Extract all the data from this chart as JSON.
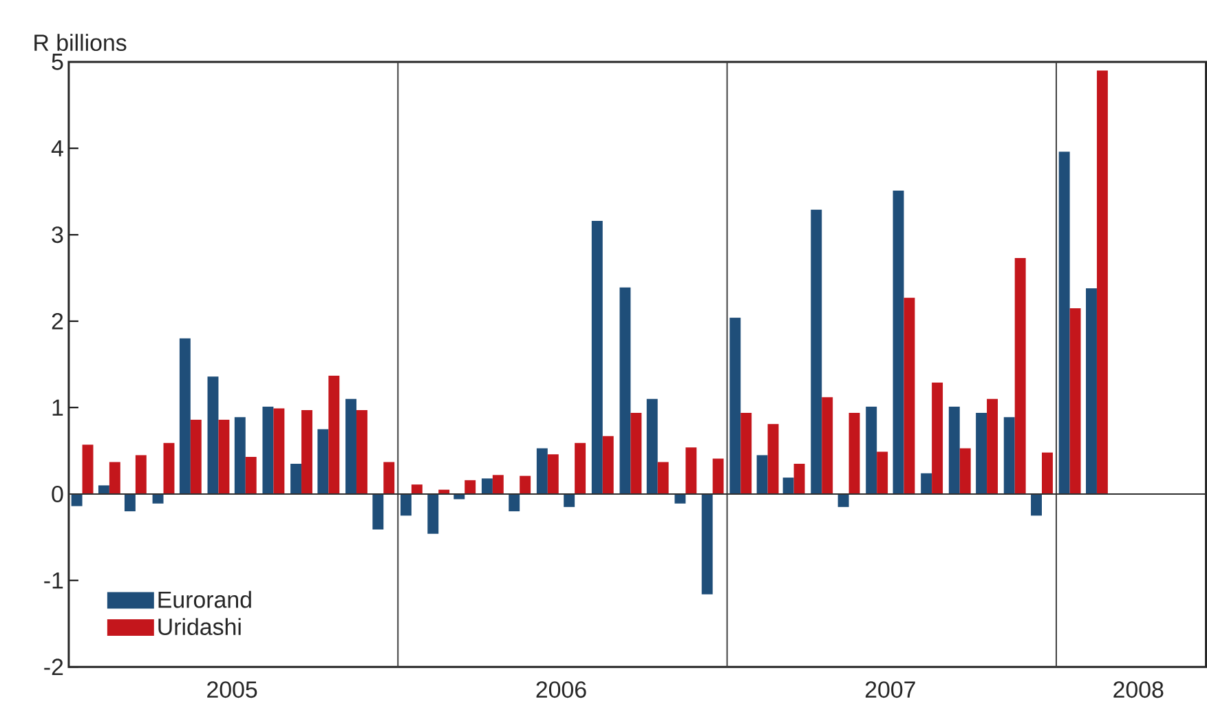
{
  "chart_data": {
    "type": "bar",
    "ylabel": "R billions",
    "x": [
      "2005-01-16",
      "2005-02-15",
      "2005-03-16",
      "2005-04-16",
      "2005-05-16",
      "2005-06-16",
      "2005-07-16",
      "2005-08-16",
      "2005-09-16",
      "2005-10-16",
      "2005-11-16",
      "2005-12-16",
      "2006-01-16",
      "2006-02-15",
      "2006-03-16",
      "2006-04-16",
      "2006-05-16",
      "2006-06-16",
      "2006-07-16",
      "2006-08-16",
      "2006-09-16",
      "2006-10-16",
      "2006-11-16",
      "2006-12-16",
      "2007-01-16",
      "2007-02-15",
      "2007-03-16",
      "2007-04-16",
      "2007-05-16",
      "2007-06-16",
      "2007-07-16",
      "2007-08-16",
      "2007-09-16",
      "2007-10-16",
      "2007-11-16",
      "2007-12-16",
      "2008-01-16",
      "2008-02-15"
    ],
    "series": [
      {
        "name": "Eurorand",
        "color": "#1f4e79",
        "values": [
          -0.14,
          0.1,
          -0.2,
          -0.11,
          1.8,
          1.36,
          0.89,
          1.01,
          0.35,
          0.75,
          1.1,
          -0.41,
          -0.25,
          -0.46,
          -0.06,
          0.18,
          -0.2,
          0.53,
          -0.15,
          3.16,
          2.39,
          1.1,
          -0.11,
          -1.16,
          2.04,
          0.45,
          0.19,
          3.29,
          -0.15,
          1.01,
          3.51,
          0.24,
          1.01,
          0.94,
          0.89,
          -0.25,
          3.96,
          2.38
        ]
      },
      {
        "name": "Uridashi",
        "color": "#c4161c",
        "values": [
          0.57,
          0.37,
          0.45,
          0.59,
          0.86,
          0.86,
          0.43,
          0.99,
          0.97,
          1.37,
          0.97,
          0.37,
          0.11,
          0.05,
          0.16,
          0.22,
          0.21,
          0.46,
          0.59,
          0.67,
          0.94,
          0.37,
          0.54,
          0.41,
          0.94,
          0.81,
          0.35,
          1.12,
          0.94,
          0.49,
          2.27,
          1.29,
          0.53,
          1.1,
          2.73,
          0.48,
          2.15,
          4.9
        ]
      }
    ],
    "xlim": [
      "2005-01-01",
      "2008-06-15"
    ],
    "xticks": [
      {
        "value": "2005-07-01",
        "label": "2005"
      },
      {
        "value": "2006-07-01",
        "label": "2006"
      },
      {
        "value": "2007-07-01",
        "label": "2007"
      },
      {
        "value": "2008-04-01",
        "label": "2008"
      }
    ],
    "ylim": [
      -2,
      5
    ],
    "yticks": [
      -2,
      -1,
      0,
      1,
      2,
      3,
      4,
      5
    ],
    "ref_lines": [
      {
        "axis": "x",
        "value": "2006-01-01",
        "color": "#404040"
      },
      {
        "axis": "x",
        "value": "2007-01-01",
        "color": "#404040"
      },
      {
        "axis": "x",
        "value": "2008-01-01",
        "color": "#404040"
      },
      {
        "axis": "y",
        "value": 0,
        "color": "#303030"
      }
    ],
    "grid": false,
    "legend": "bottom left"
  }
}
